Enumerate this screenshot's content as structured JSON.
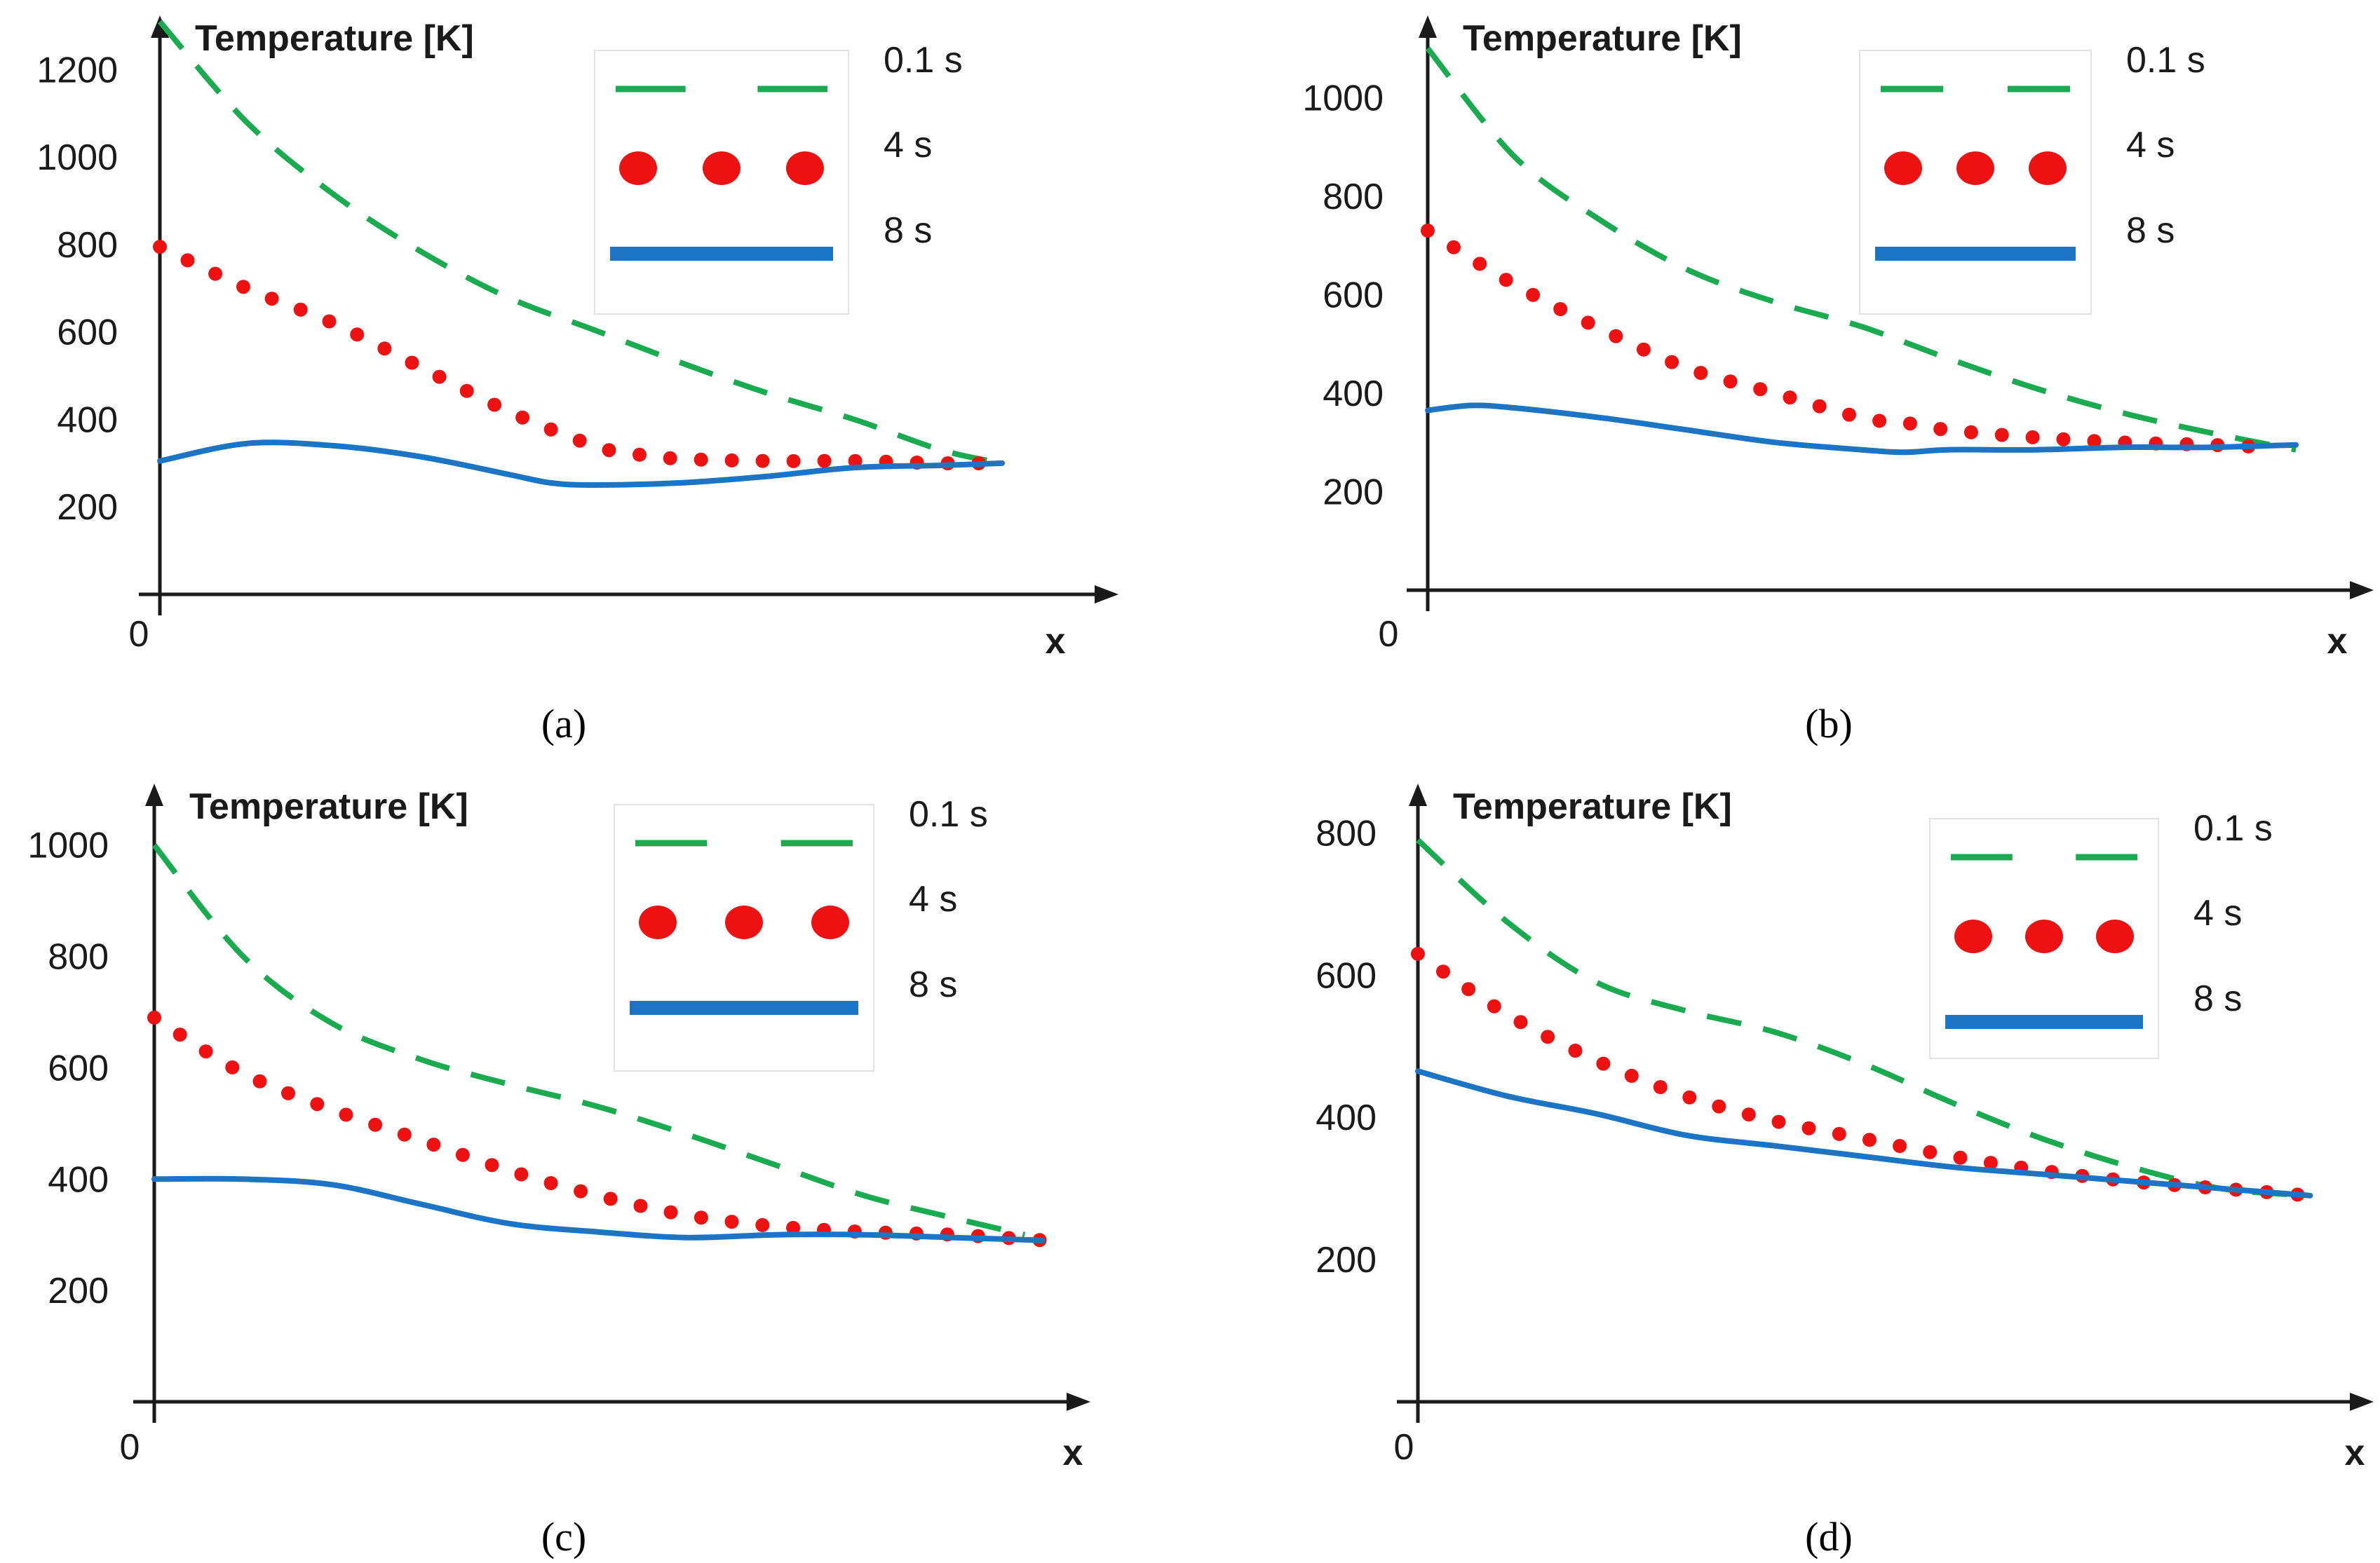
{
  "colors": {
    "axis": "#1a1a1a",
    "series_0.1s": "#1aaa50",
    "series_4s": "#ee1111",
    "series_8s": "#1b75c4",
    "legend_border": "#e3e3e3"
  },
  "chart_data": [
    {
      "panel": "a",
      "caption": "(a)",
      "type": "line",
      "ylabel": "Temperature [K]",
      "xlabel": "x",
      "x_origin_label": "0",
      "y_ticks": [
        200,
        400,
        600,
        800,
        1000,
        1200
      ],
      "ylim": [
        0,
        1260
      ],
      "xlim": [
        0,
        1.05
      ],
      "legend": [
        "0.1 s",
        "4 s",
        "8 s"
      ],
      "series": [
        {
          "name": "0.1 s",
          "style": "dashed",
          "x": [
            0,
            0.1,
            0.2,
            0.3,
            0.4,
            0.5,
            0.6,
            0.7,
            0.8,
            0.9,
            0.97
          ],
          "y": [
            1310,
            1080,
            915,
            785,
            680,
            605,
            530,
            460,
            400,
            330,
            300
          ]
        },
        {
          "name": "4 s",
          "style": "dotted",
          "x": [
            0,
            0.1,
            0.2,
            0.3,
            0.4,
            0.5,
            0.55,
            0.6,
            0.7,
            0.8,
            0.9,
            0.95
          ],
          "y": [
            795,
            700,
            620,
            520,
            420,
            340,
            320,
            310,
            305,
            305,
            300,
            300
          ]
        },
        {
          "name": "8 s",
          "style": "solid",
          "x": [
            0,
            0.1,
            0.2,
            0.3,
            0.4,
            0.45,
            0.5,
            0.6,
            0.7,
            0.8,
            0.9,
            0.97
          ],
          "y": [
            305,
            345,
            340,
            315,
            275,
            255,
            250,
            255,
            270,
            290,
            295,
            300
          ]
        }
      ]
    },
    {
      "panel": "b",
      "caption": "(b)",
      "type": "line",
      "ylabel": "Temperature [K]",
      "xlabel": "x",
      "x_origin_label": "0",
      "y_ticks": [
        200,
        400,
        600,
        800,
        1000
      ],
      "ylim": [
        0,
        1110
      ],
      "xlim": [
        0,
        1.05
      ],
      "legend": [
        "0.1 s",
        "4 s",
        "8 s"
      ],
      "series": [
        {
          "name": "0.1 s",
          "style": "dashed",
          "x": [
            0,
            0.1,
            0.2,
            0.3,
            0.4,
            0.5,
            0.6,
            0.7,
            0.8,
            0.9,
            1.0
          ],
          "y": [
            1100,
            880,
            750,
            650,
            585,
            535,
            470,
            410,
            360,
            320,
            285
          ]
        },
        {
          "name": "4 s",
          "style": "dotted",
          "x": [
            0,
            0.1,
            0.2,
            0.3,
            0.4,
            0.5,
            0.55,
            0.6,
            0.7,
            0.8,
            0.9,
            0.97
          ],
          "y": [
            730,
            620,
            530,
            450,
            400,
            350,
            340,
            325,
            310,
            300,
            295,
            290
          ]
        },
        {
          "name": "8 s",
          "style": "solid",
          "x": [
            0,
            0.05,
            0.1,
            0.2,
            0.3,
            0.4,
            0.5,
            0.55,
            0.6,
            0.7,
            0.8,
            0.9,
            1.0
          ],
          "y": [
            365,
            375,
            370,
            350,
            325,
            300,
            285,
            280,
            285,
            285,
            290,
            290,
            295
          ]
        }
      ]
    },
    {
      "panel": "c",
      "caption": "(c)",
      "type": "line",
      "ylabel": "Temperature [K]",
      "xlabel": "x",
      "x_origin_label": "0",
      "y_ticks": [
        200,
        400,
        600,
        800,
        1000
      ],
      "ylim": [
        0,
        1060
      ],
      "xlim": [
        0,
        1.05
      ],
      "legend": [
        "0.1 s",
        "4 s",
        "8 s"
      ],
      "series": [
        {
          "name": "0.1 s",
          "style": "dashed",
          "x": [
            0,
            0.1,
            0.2,
            0.3,
            0.4,
            0.5,
            0.6,
            0.7,
            0.8,
            0.9,
            0.98
          ],
          "y": [
            1000,
            800,
            680,
            615,
            570,
            530,
            480,
            425,
            370,
            330,
            300
          ]
        },
        {
          "name": "4 s",
          "style": "dotted",
          "x": [
            0,
            0.1,
            0.2,
            0.3,
            0.4,
            0.5,
            0.6,
            0.7,
            0.8,
            0.9,
            1.0
          ],
          "y": [
            690,
            590,
            525,
            470,
            415,
            370,
            335,
            315,
            305,
            300,
            290
          ]
        },
        {
          "name": "8 s",
          "style": "solid",
          "x": [
            0,
            0.1,
            0.2,
            0.3,
            0.4,
            0.5,
            0.6,
            0.7,
            0.8,
            0.9,
            1.0
          ],
          "y": [
            400,
            400,
            390,
            355,
            320,
            305,
            295,
            300,
            300,
            295,
            290
          ]
        }
      ]
    },
    {
      "panel": "d",
      "caption": "(d)",
      "type": "line",
      "ylabel": "Temperature [K]",
      "xlabel": "x",
      "x_origin_label": "0",
      "y_ticks": [
        200,
        400,
        600,
        800
      ],
      "ylim": [
        0,
        830
      ],
      "xlim": [
        0,
        1.05
      ],
      "legend": [
        "0.1 s",
        "4 s",
        "8 s"
      ],
      "series": [
        {
          "name": "0.1 s",
          "style": "dashed",
          "x": [
            0,
            0.1,
            0.2,
            0.3,
            0.4,
            0.5,
            0.6,
            0.7,
            0.8,
            0.9,
            1.0
          ],
          "y": [
            790,
            675,
            590,
            550,
            520,
            475,
            420,
            370,
            330,
            300,
            290
          ]
        },
        {
          "name": "4 s",
          "style": "dotted",
          "x": [
            0,
            0.1,
            0.2,
            0.3,
            0.4,
            0.5,
            0.6,
            0.7,
            0.8,
            0.9,
            1.0
          ],
          "y": [
            630,
            545,
            480,
            430,
            395,
            370,
            345,
            325,
            310,
            300,
            290
          ]
        },
        {
          "name": "8 s",
          "style": "solid",
          "x": [
            0,
            0.1,
            0.2,
            0.3,
            0.4,
            0.5,
            0.6,
            0.7,
            0.8,
            0.9,
            1.0
          ],
          "y": [
            465,
            430,
            405,
            375,
            360,
            345,
            330,
            320,
            310,
            300,
            290
          ]
        }
      ]
    }
  ]
}
